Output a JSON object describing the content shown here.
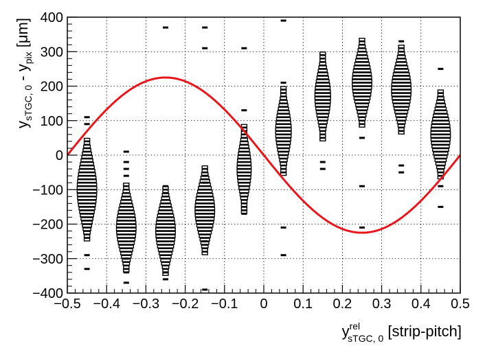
{
  "chart_data": {
    "type": "heatmap",
    "title": "",
    "xlabel": {
      "main": "y",
      "sup": "rel",
      "sub": "sTGC, 0",
      "suffix": " [strip-pitch]"
    },
    "ylabel": {
      "main": "y",
      "sub1": "sTGC, 0",
      "mid": " - y",
      "sub2": "pix",
      "suffix": " [μm]"
    },
    "xlim": [
      -0.5,
      0.5
    ],
    "ylim": [
      -400,
      400
    ],
    "x_ticks": [
      "−0.5",
      "−0.4",
      "−0.3",
      "−0.2",
      "−0.1",
      "0",
      "0.1",
      "0.2",
      "0.3",
      "0.4",
      "0.5"
    ],
    "y_ticks": [
      "400",
      "300",
      "200",
      "100",
      "0",
      "−100",
      "−200",
      "−300",
      "−400"
    ],
    "grid": true,
    "bin_width_y": 10,
    "histogram_columns": [
      {
        "x": -0.45,
        "center": -100,
        "peak_halfwidth": 0.025,
        "spread": 6,
        "outliers": [
          110,
          90,
          -290,
          -330
        ]
      },
      {
        "x": -0.35,
        "center": -210,
        "peak_halfwidth": 0.025,
        "spread": 5,
        "outliers": [
          10,
          -20,
          -40,
          -60,
          -300,
          -340,
          -370
        ]
      },
      {
        "x": -0.25,
        "center": -220,
        "peak_halfwidth": 0.025,
        "spread": 5,
        "outliers": [
          370,
          -90,
          -110,
          -340,
          -360
        ]
      },
      {
        "x": -0.15,
        "center": -160,
        "peak_halfwidth": 0.025,
        "spread": 5,
        "outliers": [
          370,
          310,
          -60,
          -80,
          -250,
          -390
        ]
      },
      {
        "x": -0.05,
        "center": -40,
        "peak_halfwidth": 0.018,
        "spread": 5,
        "outliers": [
          310,
          130,
          -170
        ]
      },
      {
        "x": 0.05,
        "center": 70,
        "peak_halfwidth": 0.02,
        "spread": 5,
        "outliers": [
          390,
          210,
          -210,
          -290
        ]
      },
      {
        "x": 0.15,
        "center": 170,
        "peak_halfwidth": 0.02,
        "spread": 5,
        "outliers": [
          -20,
          -40
        ]
      },
      {
        "x": 0.25,
        "center": 210,
        "peak_halfwidth": 0.025,
        "spread": 5,
        "outliers": [
          50,
          -90,
          -210
        ]
      },
      {
        "x": 0.35,
        "center": 190,
        "peak_halfwidth": 0.025,
        "spread": 5,
        "outliers": [
          330,
          -30,
          -50
        ]
      },
      {
        "x": 0.45,
        "center": 60,
        "peak_halfwidth": 0.025,
        "spread": 5,
        "outliers": [
          250,
          -90,
          -150
        ]
      }
    ],
    "fit_curve": {
      "name": "",
      "function": "y = -A * sin(2*pi*x)",
      "amplitude": 225,
      "color": "#e8151b"
    },
    "colors": {
      "box_stroke": "#000000",
      "grid": "#000000",
      "fit": "#e8151b"
    }
  }
}
